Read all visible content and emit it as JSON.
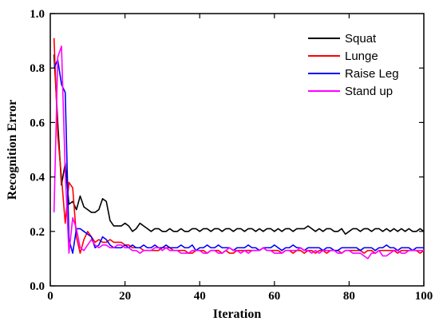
{
  "chart_data": {
    "type": "line",
    "title": "",
    "xlabel": "Iteration",
    "ylabel": "Recognition Error",
    "xlim": [
      0,
      100
    ],
    "ylim": [
      0,
      1.0
    ],
    "x_ticks": [
      0,
      20,
      40,
      60,
      80,
      100
    ],
    "y_ticks": [
      0.0,
      0.2,
      0.4,
      0.6,
      0.8,
      1.0
    ],
    "x_tick_labels": [
      "0",
      "20",
      "40",
      "60",
      "80",
      "100"
    ],
    "y_tick_labels": [
      "0.0",
      "0.2",
      "0.4",
      "0.6",
      "0.8",
      "1.0"
    ],
    "grid": false,
    "legend_position": "top-right",
    "x": [
      1,
      2,
      3,
      4,
      5,
      6,
      7,
      8,
      9,
      10,
      11,
      12,
      13,
      14,
      15,
      16,
      17,
      18,
      19,
      20,
      21,
      22,
      23,
      24,
      25,
      26,
      27,
      28,
      29,
      30,
      31,
      32,
      33,
      34,
      35,
      36,
      37,
      38,
      39,
      40,
      41,
      42,
      43,
      44,
      45,
      46,
      47,
      48,
      49,
      50,
      51,
      52,
      53,
      54,
      55,
      56,
      57,
      58,
      59,
      60,
      61,
      62,
      63,
      64,
      65,
      66,
      67,
      68,
      69,
      70,
      71,
      72,
      73,
      74,
      75,
      76,
      77,
      78,
      79,
      80,
      81,
      82,
      83,
      84,
      85,
      86,
      87,
      88,
      89,
      90,
      91,
      92,
      93,
      94,
      95,
      96,
      97,
      98,
      99,
      100
    ],
    "series": [
      {
        "name": "Squat",
        "color": "#000000",
        "values": [
          0.85,
          0.6,
          0.37,
          0.45,
          0.3,
          0.31,
          0.28,
          0.33,
          0.29,
          0.28,
          0.27,
          0.27,
          0.28,
          0.32,
          0.31,
          0.24,
          0.22,
          0.22,
          0.22,
          0.23,
          0.22,
          0.2,
          0.21,
          0.23,
          0.22,
          0.21,
          0.2,
          0.21,
          0.21,
          0.2,
          0.2,
          0.21,
          0.2,
          0.2,
          0.21,
          0.2,
          0.2,
          0.21,
          0.21,
          0.2,
          0.21,
          0.21,
          0.2,
          0.21,
          0.21,
          0.2,
          0.21,
          0.21,
          0.2,
          0.21,
          0.21,
          0.2,
          0.21,
          0.21,
          0.2,
          0.21,
          0.2,
          0.21,
          0.21,
          0.2,
          0.21,
          0.2,
          0.21,
          0.21,
          0.2,
          0.21,
          0.21,
          0.21,
          0.22,
          0.21,
          0.2,
          0.21,
          0.2,
          0.21,
          0.21,
          0.2,
          0.2,
          0.21,
          0.19,
          0.2,
          0.21,
          0.21,
          0.2,
          0.21,
          0.21,
          0.2,
          0.21,
          0.21,
          0.2,
          0.21,
          0.2,
          0.21,
          0.2,
          0.21,
          0.2,
          0.21,
          0.2,
          0.2,
          0.21,
          0.2
        ]
      },
      {
        "name": "Lunge",
        "color": "#ff0000",
        "values": [
          0.91,
          0.55,
          0.4,
          0.23,
          0.38,
          0.36,
          0.18,
          0.12,
          0.17,
          0.2,
          0.18,
          0.16,
          0.17,
          0.16,
          0.16,
          0.17,
          0.16,
          0.16,
          0.16,
          0.15,
          0.15,
          0.14,
          0.14,
          0.14,
          0.13,
          0.13,
          0.13,
          0.13,
          0.13,
          0.14,
          0.14,
          0.14,
          0.13,
          0.13,
          0.13,
          0.13,
          0.12,
          0.12,
          0.13,
          0.13,
          0.13,
          0.12,
          0.13,
          0.13,
          0.13,
          0.12,
          0.13,
          0.12,
          0.12,
          0.13,
          0.13,
          0.13,
          0.13,
          0.13,
          0.13,
          0.13,
          0.14,
          0.13,
          0.13,
          0.13,
          0.13,
          0.12,
          0.13,
          0.13,
          0.12,
          0.13,
          0.13,
          0.12,
          0.13,
          0.13,
          0.12,
          0.13,
          0.13,
          0.12,
          0.13,
          0.13,
          0.13,
          0.12,
          0.13,
          0.13,
          0.13,
          0.13,
          0.13,
          0.12,
          0.13,
          0.13,
          0.12,
          0.13,
          0.13,
          0.13,
          0.13,
          0.13,
          0.12,
          0.13,
          0.13,
          0.13,
          0.13,
          0.13,
          0.12,
          0.13
        ]
      },
      {
        "name": "Raise Leg",
        "color": "#0000ff",
        "values": [
          0.8,
          0.83,
          0.74,
          0.71,
          0.17,
          0.12,
          0.21,
          0.21,
          0.2,
          0.19,
          0.18,
          0.14,
          0.15,
          0.18,
          0.17,
          0.15,
          0.14,
          0.14,
          0.14,
          0.15,
          0.14,
          0.15,
          0.14,
          0.14,
          0.15,
          0.14,
          0.14,
          0.15,
          0.14,
          0.14,
          0.15,
          0.14,
          0.14,
          0.14,
          0.15,
          0.14,
          0.14,
          0.15,
          0.13,
          0.14,
          0.14,
          0.15,
          0.14,
          0.14,
          0.15,
          0.14,
          0.14,
          0.14,
          0.13,
          0.14,
          0.14,
          0.14,
          0.15,
          0.14,
          0.14,
          0.13,
          0.14,
          0.14,
          0.14,
          0.15,
          0.14,
          0.13,
          0.14,
          0.14,
          0.15,
          0.14,
          0.14,
          0.13,
          0.14,
          0.14,
          0.14,
          0.14,
          0.13,
          0.14,
          0.14,
          0.13,
          0.13,
          0.14,
          0.14,
          0.14,
          0.14,
          0.14,
          0.13,
          0.14,
          0.14,
          0.14,
          0.13,
          0.14,
          0.14,
          0.15,
          0.14,
          0.14,
          0.13,
          0.14,
          0.14,
          0.14,
          0.13,
          0.14,
          0.14,
          0.14
        ]
      },
      {
        "name": "Stand up",
        "color": "#ff00ff",
        "values": [
          0.27,
          0.84,
          0.88,
          0.42,
          0.12,
          0.25,
          0.21,
          0.14,
          0.13,
          0.15,
          0.17,
          0.15,
          0.14,
          0.15,
          0.15,
          0.14,
          0.14,
          0.15,
          0.15,
          0.14,
          0.14,
          0.13,
          0.13,
          0.12,
          0.13,
          0.13,
          0.13,
          0.14,
          0.14,
          0.13,
          0.14,
          0.13,
          0.13,
          0.13,
          0.12,
          0.12,
          0.12,
          0.13,
          0.13,
          0.13,
          0.12,
          0.12,
          0.13,
          0.13,
          0.12,
          0.12,
          0.13,
          0.14,
          0.13,
          0.13,
          0.12,
          0.13,
          0.12,
          0.13,
          0.13,
          0.13,
          0.14,
          0.13,
          0.13,
          0.12,
          0.12,
          0.12,
          0.13,
          0.13,
          0.13,
          0.13,
          0.14,
          0.13,
          0.13,
          0.12,
          0.13,
          0.12,
          0.13,
          0.13,
          0.13,
          0.13,
          0.12,
          0.12,
          0.13,
          0.13,
          0.12,
          0.12,
          0.12,
          0.11,
          0.1,
          0.12,
          0.12,
          0.13,
          0.11,
          0.11,
          0.12,
          0.13,
          0.13,
          0.12,
          0.12,
          0.13,
          0.13,
          0.13,
          0.13,
          0.13
        ]
      }
    ]
  }
}
